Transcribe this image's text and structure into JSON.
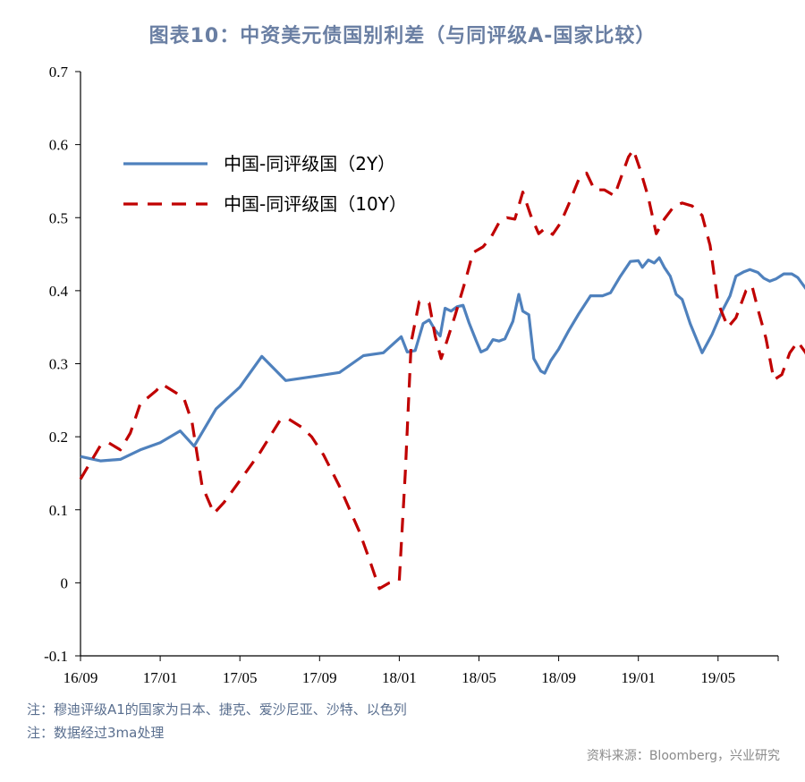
{
  "title": "图表10：中资美元债国别利差（与同评级A-国家比较）",
  "notes": [
    "注：穆迪评级A1的国家为日本、捷克、爱沙尼亚、沙特、以色列",
    "注：数据经过3ma处理"
  ],
  "source": "资料来源：Bloomberg，兴业研究",
  "chart_data": {
    "type": "line",
    "title": "图表10：中资美元债国别利差（与同评级A-国家比较）",
    "xlabel": "",
    "ylabel": "",
    "x_ticks": [
      "16/09",
      "17/01",
      "17/05",
      "17/09",
      "18/01",
      "18/05",
      "18/09",
      "19/01",
      "19/05"
    ],
    "x_range_months": [
      0,
      35
    ],
    "ylim": [
      -0.1,
      0.7
    ],
    "y_ticks": [
      -0.1,
      0,
      0.1,
      0.2,
      0.3,
      0.4,
      0.5,
      0.6,
      0.7
    ],
    "y_tick_labels": [
      "-0.1",
      "0",
      "0.1",
      "0.2",
      "0.3",
      "0.4",
      "0.5",
      "0.6",
      "0.7"
    ],
    "grid": false,
    "legend_position": "top-left",
    "series": [
      {
        "name": "中国-同评级国（2Y）",
        "style": "solid",
        "color": "#4f81bd",
        "points": [
          [
            0,
            0.173
          ],
          [
            1,
            0.167
          ],
          [
            2,
            0.169
          ],
          [
            3,
            0.182
          ],
          [
            4,
            0.192
          ],
          [
            5,
            0.208
          ],
          [
            5.7,
            0.187
          ],
          [
            6.8,
            0.238
          ],
          [
            8,
            0.268
          ],
          [
            9.1,
            0.31
          ],
          [
            10.3,
            0.277
          ],
          [
            11.8,
            0.283
          ],
          [
            13,
            0.288
          ],
          [
            14.2,
            0.311
          ],
          [
            15.2,
            0.315
          ],
          [
            16.1,
            0.337
          ],
          [
            16.4,
            0.316
          ],
          [
            16.8,
            0.318
          ],
          [
            17.2,
            0.355
          ],
          [
            17.5,
            0.36
          ],
          [
            17.8,
            0.346
          ],
          [
            18.05,
            0.338
          ],
          [
            18.3,
            0.376
          ],
          [
            18.6,
            0.372
          ],
          [
            18.9,
            0.378
          ],
          [
            19.2,
            0.38
          ],
          [
            19.5,
            0.356
          ],
          [
            19.85,
            0.332
          ],
          [
            20.1,
            0.316
          ],
          [
            20.4,
            0.32
          ],
          [
            20.7,
            0.333
          ],
          [
            21.0,
            0.331
          ],
          [
            21.3,
            0.334
          ],
          [
            21.7,
            0.358
          ],
          [
            22.0,
            0.395
          ],
          [
            22.2,
            0.372
          ],
          [
            22.5,
            0.367
          ],
          [
            22.75,
            0.307
          ],
          [
            23.1,
            0.29
          ],
          [
            23.3,
            0.287
          ],
          [
            23.6,
            0.304
          ],
          [
            24.0,
            0.32
          ],
          [
            24.5,
            0.345
          ],
          [
            25.0,
            0.368
          ],
          [
            25.6,
            0.393
          ],
          [
            26.2,
            0.393
          ],
          [
            26.6,
            0.397
          ],
          [
            27.1,
            0.42
          ],
          [
            27.6,
            0.44
          ],
          [
            28.0,
            0.441
          ],
          [
            28.2,
            0.432
          ],
          [
            28.5,
            0.442
          ],
          [
            28.8,
            0.438
          ],
          [
            29.05,
            0.445
          ],
          [
            29.3,
            0.432
          ],
          [
            29.6,
            0.42
          ],
          [
            29.9,
            0.395
          ],
          [
            30.2,
            0.388
          ],
          [
            30.6,
            0.355
          ],
          [
            31.2,
            0.315
          ],
          [
            31.7,
            0.34
          ],
          [
            32.2,
            0.372
          ],
          [
            32.6,
            0.393
          ],
          [
            32.9,
            0.42
          ],
          [
            33.3,
            0.426
          ],
          [
            33.6,
            0.429
          ],
          [
            34.0,
            0.425
          ],
          [
            34.3,
            0.417
          ],
          [
            34.6,
            0.413
          ],
          [
            34.9,
            0.416
          ],
          [
            35.3,
            0.423
          ],
          [
            35.7,
            0.423
          ],
          [
            36.0,
            0.418
          ],
          [
            36.4,
            0.403
          ],
          [
            36.8,
            0.396
          ],
          [
            37.2,
            0.368
          ],
          [
            37.5,
            0.372
          ],
          [
            38.0,
            0.405
          ],
          [
            38.4,
            0.398
          ],
          [
            38.8,
            0.385
          ]
        ]
      },
      {
        "name": "中国-同评级国（10Y）",
        "style": "dashed",
        "color": "#c00000",
        "points": [
          [
            0,
            0.142
          ],
          [
            1,
            0.188
          ],
          [
            1.4,
            0.192
          ],
          [
            2,
            0.182
          ],
          [
            2.5,
            0.205
          ],
          [
            3,
            0.245
          ],
          [
            3.8,
            0.263
          ],
          [
            4.1,
            0.272
          ],
          [
            4.8,
            0.26
          ],
          [
            5.2,
            0.252
          ],
          [
            5.6,
            0.22
          ],
          [
            6.1,
            0.133
          ],
          [
            6.7,
            0.095
          ],
          [
            7.2,
            0.11
          ],
          [
            8,
            0.14
          ],
          [
            9,
            0.178
          ],
          [
            10,
            0.222
          ],
          [
            10.4,
            0.225
          ],
          [
            11.1,
            0.213
          ],
          [
            11.6,
            0.2
          ],
          [
            12.2,
            0.175
          ],
          [
            13,
            0.132
          ],
          [
            14,
            0.07
          ],
          [
            14.5,
            0.032
          ],
          [
            15.0,
            -0.008
          ],
          [
            15.5,
            0.0
          ],
          [
            16.0,
            0.003
          ],
          [
            16.3,
            0.15
          ],
          [
            16.6,
            0.33
          ],
          [
            17.0,
            0.385
          ],
          [
            17.5,
            0.383
          ],
          [
            17.8,
            0.338
          ],
          [
            18.1,
            0.307
          ],
          [
            18.4,
            0.332
          ],
          [
            18.8,
            0.366
          ],
          [
            19.3,
            0.412
          ],
          [
            19.7,
            0.452
          ],
          [
            20.2,
            0.46
          ],
          [
            20.6,
            0.473
          ],
          [
            21.0,
            0.493
          ],
          [
            21.4,
            0.5
          ],
          [
            21.8,
            0.498
          ],
          [
            22.2,
            0.535
          ],
          [
            22.6,
            0.503
          ],
          [
            23.0,
            0.478
          ],
          [
            23.3,
            0.485
          ],
          [
            23.7,
            0.477
          ],
          [
            24.1,
            0.493
          ],
          [
            24.5,
            0.518
          ],
          [
            25.0,
            0.552
          ],
          [
            25.4,
            0.561
          ],
          [
            25.8,
            0.538
          ],
          [
            26.3,
            0.538
          ],
          [
            26.8,
            0.53
          ],
          [
            27.1,
            0.553
          ],
          [
            27.5,
            0.583
          ],
          [
            27.75,
            0.593
          ],
          [
            28.1,
            0.565
          ],
          [
            28.5,
            0.528
          ],
          [
            28.9,
            0.478
          ],
          [
            29.3,
            0.498
          ],
          [
            29.8,
            0.516
          ],
          [
            30.2,
            0.52
          ],
          [
            30.7,
            0.516
          ],
          [
            31.2,
            0.503
          ],
          [
            31.6,
            0.462
          ],
          [
            32.0,
            0.383
          ],
          [
            32.5,
            0.35
          ],
          [
            32.9,
            0.363
          ],
          [
            33.4,
            0.4
          ],
          [
            33.7,
            0.407
          ],
          [
            34.0,
            0.375
          ],
          [
            34.4,
            0.335
          ],
          [
            34.8,
            0.278
          ],
          [
            35.2,
            0.285
          ],
          [
            35.6,
            0.315
          ],
          [
            36.0,
            0.33
          ],
          [
            36.4,
            0.315
          ],
          [
            36.8,
            0.288
          ],
          [
            37.3,
            0.32
          ],
          [
            37.8,
            0.315
          ],
          [
            38.2,
            0.33
          ],
          [
            38.5,
            0.347
          ],
          [
            38.8,
            0.342
          ]
        ]
      }
    ]
  }
}
